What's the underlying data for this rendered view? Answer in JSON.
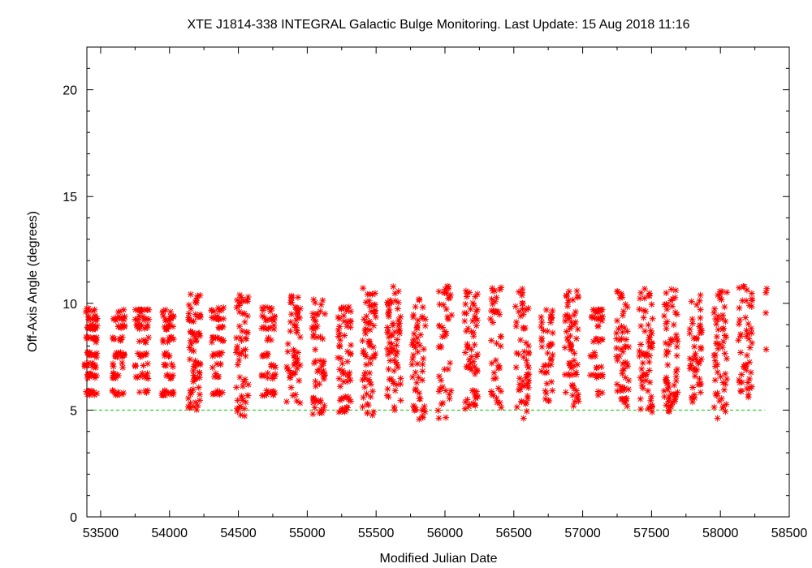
{
  "chart_data": {
    "type": "scatter",
    "title": "XTE J1814-338   INTEGRAL Galactic Bulge Monitoring.  Last Update: 15 Aug 2018 11:16",
    "xlabel": "Modified Julian Date",
    "ylabel": "Off-Axis Angle (degrees)",
    "xlim": [
      53400,
      58500
    ],
    "ylim": [
      0,
      22
    ],
    "xticks": [
      53500,
      54000,
      54500,
      55000,
      55500,
      56000,
      56500,
      57000,
      57500,
      58000,
      58500
    ],
    "yticks": [
      0,
      5,
      10,
      15,
      20
    ],
    "grid": false,
    "legend": "none",
    "colors": {
      "points": "#ff0000",
      "reference_line": "#00cc00",
      "axes": "#000000"
    },
    "reference_line": {
      "y": 5,
      "style": "dashed"
    },
    "visibility_windows": [
      {
        "center": 53430,
        "width": 90,
        "ymin": 5.7,
        "ymax": 9.9,
        "n": 90,
        "pattern": "grid"
      },
      {
        "center": 53630,
        "width": 90,
        "ymin": 5.7,
        "ymax": 9.7,
        "n": 60,
        "pattern": "grid"
      },
      {
        "center": 53800,
        "width": 100,
        "ymin": 5.7,
        "ymax": 9.7,
        "n": 60,
        "pattern": "grid"
      },
      {
        "center": 53990,
        "width": 90,
        "ymin": 5.7,
        "ymax": 9.7,
        "n": 60,
        "pattern": "grid"
      },
      {
        "center": 54180,
        "width": 90,
        "ymin": 4.9,
        "ymax": 10.6,
        "n": 70,
        "pattern": "random"
      },
      {
        "center": 54350,
        "width": 90,
        "ymin": 5.7,
        "ymax": 10.8,
        "n": 55,
        "pattern": "grid"
      },
      {
        "center": 54530,
        "width": 90,
        "ymin": 4.6,
        "ymax": 10.6,
        "n": 55,
        "pattern": "random"
      },
      {
        "center": 54720,
        "width": 100,
        "ymin": 5.3,
        "ymax": 10.7,
        "n": 55,
        "pattern": "grid"
      },
      {
        "center": 54900,
        "width": 100,
        "ymin": 5.3,
        "ymax": 10.8,
        "n": 55,
        "pattern": "random"
      },
      {
        "center": 55080,
        "width": 100,
        "ymin": 4.8,
        "ymax": 10.2,
        "n": 55,
        "pattern": "random"
      },
      {
        "center": 55270,
        "width": 100,
        "ymin": 4.9,
        "ymax": 10.0,
        "n": 60,
        "pattern": "random"
      },
      {
        "center": 55450,
        "width": 100,
        "ymin": 4.6,
        "ymax": 10.8,
        "n": 65,
        "pattern": "random"
      },
      {
        "center": 55630,
        "width": 100,
        "ymin": 4.9,
        "ymax": 10.8,
        "n": 65,
        "pattern": "random"
      },
      {
        "center": 55810,
        "width": 100,
        "ymin": 4.5,
        "ymax": 10.2,
        "n": 55,
        "pattern": "random"
      },
      {
        "center": 56000,
        "width": 100,
        "ymin": 4.6,
        "ymax": 10.8,
        "n": 45,
        "pattern": "random"
      },
      {
        "center": 56190,
        "width": 100,
        "ymin": 5.0,
        "ymax": 10.7,
        "n": 60,
        "pattern": "random"
      },
      {
        "center": 56370,
        "width": 80,
        "ymin": 5.1,
        "ymax": 10.8,
        "n": 40,
        "pattern": "random"
      },
      {
        "center": 56560,
        "width": 100,
        "ymin": 4.6,
        "ymax": 10.7,
        "n": 55,
        "pattern": "random"
      },
      {
        "center": 56740,
        "width": 90,
        "ymin": 5.0,
        "ymax": 9.8,
        "n": 40,
        "pattern": "random"
      },
      {
        "center": 56920,
        "width": 100,
        "ymin": 5.1,
        "ymax": 10.8,
        "n": 60,
        "pattern": "random"
      },
      {
        "center": 57100,
        "width": 90,
        "ymin": 5.7,
        "ymax": 9.7,
        "n": 45,
        "pattern": "grid"
      },
      {
        "center": 57290,
        "width": 90,
        "ymin": 5.0,
        "ymax": 10.7,
        "n": 55,
        "pattern": "random"
      },
      {
        "center": 57460,
        "width": 100,
        "ymin": 4.9,
        "ymax": 10.8,
        "n": 60,
        "pattern": "random"
      },
      {
        "center": 57640,
        "width": 100,
        "ymin": 4.6,
        "ymax": 10.8,
        "n": 65,
        "pattern": "random"
      },
      {
        "center": 57820,
        "width": 90,
        "ymin": 5.2,
        "ymax": 10.4,
        "n": 50,
        "pattern": "random"
      },
      {
        "center": 58000,
        "width": 100,
        "ymin": 4.6,
        "ymax": 10.8,
        "n": 55,
        "pattern": "random"
      },
      {
        "center": 58180,
        "width": 100,
        "ymin": 5.6,
        "ymax": 10.8,
        "n": 50,
        "pattern": "random"
      },
      {
        "center": 58335,
        "width": 20,
        "ymin": 6.9,
        "ymax": 10.8,
        "n": 4,
        "pattern": "random"
      }
    ]
  }
}
